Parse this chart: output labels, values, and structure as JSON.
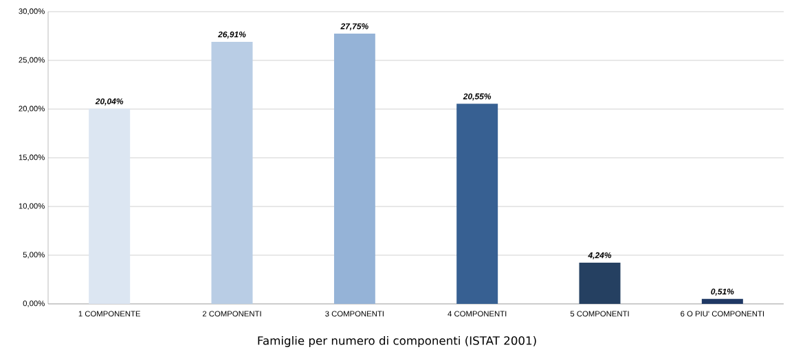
{
  "chart_data": {
    "type": "bar",
    "title": "Famiglie per numero di componenti (ISTAT 2001)",
    "categories": [
      "1 COMPONENTE",
      "2 COMPONENTI",
      "3 COMPONENTI",
      "4 COMPONENTI",
      "5 COMPONENTI",
      "6 O PIU' COMPONENTI"
    ],
    "values": [
      20.04,
      26.91,
      27.75,
      20.55,
      4.24,
      0.51
    ],
    "colors": [
      "#dce6f2",
      "#b9cde5",
      "#95b3d7",
      "#376092",
      "#254061",
      "#1f3864"
    ],
    "value_labels": [
      "20,04%",
      "26,91%",
      "27,75%",
      "20,55%",
      "4,24%",
      "0,51%"
    ],
    "ylim": [
      0,
      30
    ],
    "yticks": [
      {
        "value": 0,
        "label": "0,00%"
      },
      {
        "value": 5,
        "label": "5,00%"
      },
      {
        "value": 10,
        "label": "10,00%"
      },
      {
        "value": 15,
        "label": "15,00%"
      },
      {
        "value": 20,
        "label": "20,00%"
      },
      {
        "value": 25,
        "label": "25,00%"
      },
      {
        "value": 30,
        "label": "30,00%"
      }
    ],
    "grid": "y"
  }
}
